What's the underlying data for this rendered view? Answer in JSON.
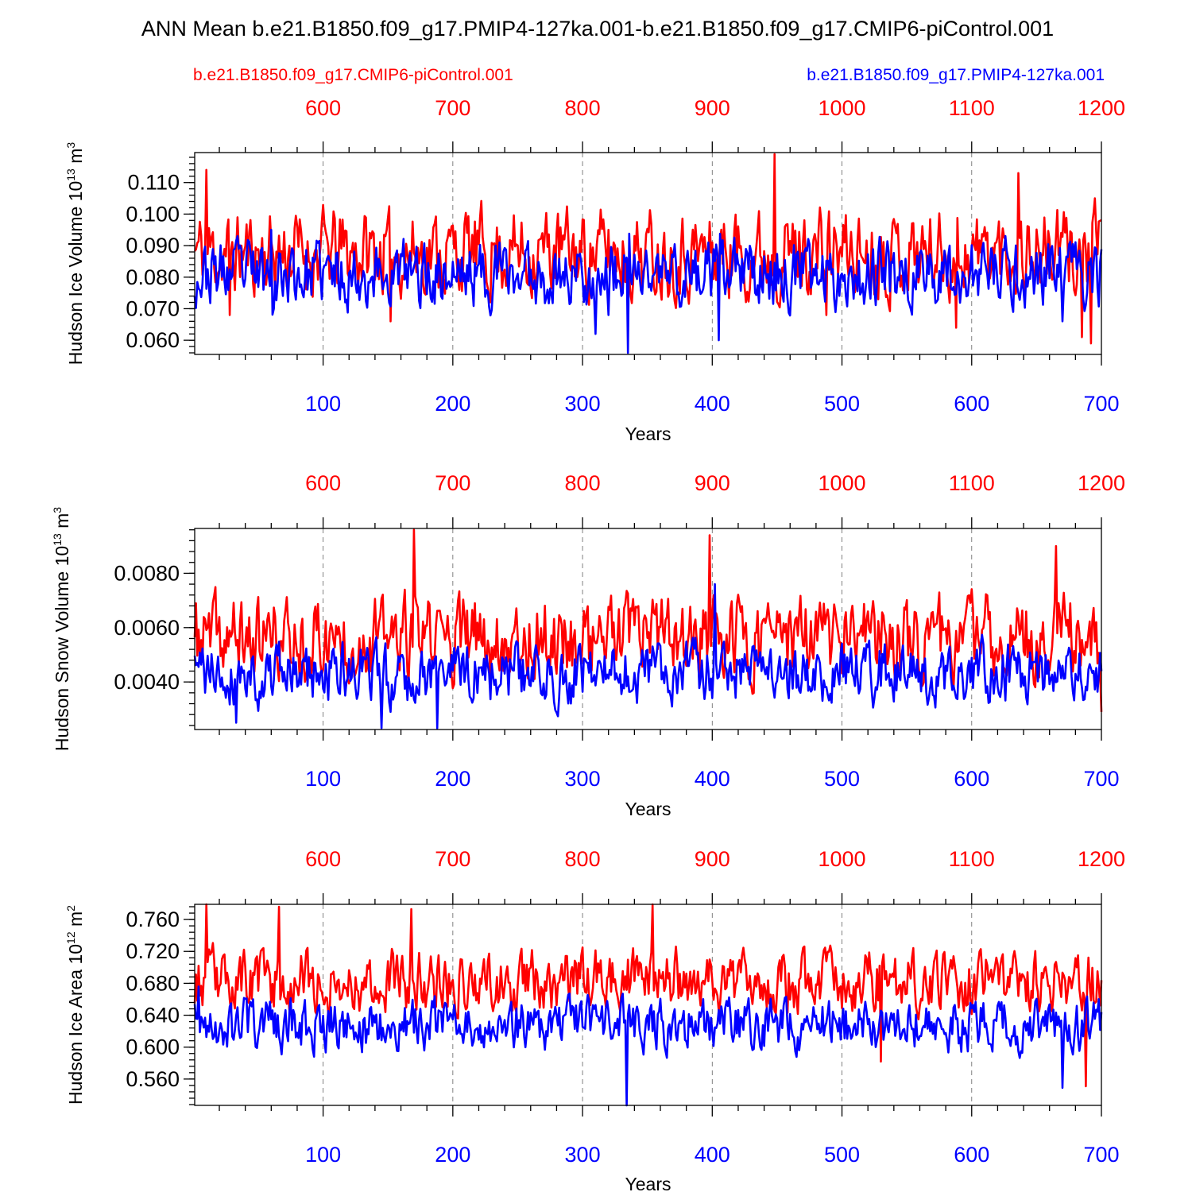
{
  "figure": {
    "title": "ANN Mean b.e21.B1850.f09_g17.PMIP4-127ka.001-b.e21.B1850.f09_g17.CMIP6-piControl.001",
    "legend": {
      "left": "b.e21.B1850.f09_g17.CMIP6-piControl.001",
      "right": "b.e21.B1850.f09_g17.PMIP4-127ka.001"
    },
    "colors": {
      "control": "#ff0000",
      "pmip": "#0000ff",
      "axis": "#000000"
    }
  },
  "chart_data": [
    {
      "type": "line",
      "id": "ice-volume",
      "ylabel": "Hudson Ice Volume 10",
      "ylabel_sup1": "13",
      "ylabel_unit": " m",
      "ylabel_sup2": "3",
      "xlabel": "Years",
      "ylim": [
        0.0555,
        0.1195
      ],
      "yticks": [
        "0.060",
        "0.070",
        "0.080",
        "0.090",
        "0.100",
        "0.110"
      ],
      "xlim_bottom": [
        1,
        700
      ],
      "xticks_bottom": [
        "100",
        "200",
        "300",
        "400",
        "500",
        "600",
        "700"
      ],
      "xlim_top": [
        501,
        1200
      ],
      "xticks_top": [
        "600",
        "700",
        "800",
        "900",
        "1000",
        "1100",
        "1200"
      ],
      "series": [
        {
          "name": "b.e21.B1850.f09_g17.CMIP6-piControl.001",
          "color": "#ff0000",
          "mean": 0.088,
          "amp": 0.0085,
          "peaks": [
            [
              10,
              0.114
            ],
            [
              28,
              0.068
            ],
            [
              152,
              0.066
            ],
            [
              448,
              0.119
            ],
            [
              488,
              0.068
            ],
            [
              588,
              0.064
            ],
            [
              636,
              0.113
            ],
            [
              685,
              0.061
            ],
            [
              692,
              0.059
            ]
          ],
          "seed": 11
        },
        {
          "name": "b.e21.B1850.f09_g17.PMIP4-127ka.001",
          "color": "#0000ff",
          "mean": 0.081,
          "amp": 0.0065,
          "peaks": [
            [
              60,
              0.095
            ],
            [
              320,
              0.068
            ],
            [
              335,
              0.056
            ],
            [
              405,
              0.06
            ],
            [
              310,
              0.062
            ],
            [
              670,
              0.066
            ]
          ],
          "seed": 23
        }
      ]
    },
    {
      "type": "line",
      "id": "snow-volume",
      "ylabel": "Hudson Snow Volume 10",
      "ylabel_sup1": "13",
      "ylabel_unit": " m",
      "ylabel_sup2": "3",
      "xlabel": "Years",
      "ylim": [
        0.00225,
        0.00965
      ],
      "yticks": [
        "0.0040",
        "0.0060",
        "0.0080"
      ],
      "xlim_bottom": [
        1,
        700
      ],
      "xticks_bottom": [
        "100",
        "200",
        "300",
        "400",
        "500",
        "600",
        "700"
      ],
      "xlim_top": [
        501,
        1200
      ],
      "xticks_top": [
        "600",
        "700",
        "800",
        "900",
        "1000",
        "1100",
        "1200"
      ],
      "series": [
        {
          "name": "b.e21.B1850.f09_g17.CMIP6-piControl.001",
          "color": "#ff0000",
          "mean": 0.0056,
          "amp": 0.00095,
          "peaks": [
            [
              170,
              0.0096
            ],
            [
              398,
              0.0094
            ],
            [
              665,
              0.009
            ],
            [
              700,
              0.0029
            ]
          ],
          "seed": 37
        },
        {
          "name": "b.e21.B1850.f09_g17.PMIP4-127ka.001",
          "color": "#0000ff",
          "mean": 0.0043,
          "amp": 0.0007,
          "peaks": [
            [
              145,
              0.0023
            ],
            [
              188,
              0.0023
            ],
            [
              402,
              0.0076
            ],
            [
              33,
              0.0025
            ]
          ],
          "seed": 41
        }
      ]
    },
    {
      "type": "line",
      "id": "ice-area",
      "ylabel": "Hudson Ice Area 10",
      "ylabel_sup1": "12",
      "ylabel_unit": " m",
      "ylabel_sup2": "2",
      "xlabel": "Years",
      "ylim": [
        0.527,
        0.779
      ],
      "yticks": [
        "0.560",
        "0.600",
        "0.640",
        "0.680",
        "0.720",
        "0.760"
      ],
      "xlim_bottom": [
        1,
        700
      ],
      "xticks_bottom": [
        "100",
        "200",
        "300",
        "400",
        "500",
        "600",
        "700"
      ],
      "xlim_top": [
        501,
        1200
      ],
      "xticks_top": [
        "600",
        "700",
        "800",
        "900",
        "1000",
        "1100",
        "1200"
      ],
      "series": [
        {
          "name": "b.e21.B1850.f09_g17.CMIP6-piControl.001",
          "color": "#ff0000",
          "mean": 0.683,
          "amp": 0.024,
          "peaks": [
            [
              10,
              0.779
            ],
            [
              66,
              0.776
            ],
            [
              168,
              0.773
            ],
            [
              354,
              0.779
            ],
            [
              688,
              0.551
            ],
            [
              530,
              0.582
            ]
          ],
          "seed": 53
        },
        {
          "name": "b.e21.B1850.f09_g17.PMIP4-127ka.001",
          "color": "#0000ff",
          "mean": 0.628,
          "amp": 0.02,
          "peaks": [
            [
              334,
              0.527
            ],
            [
              670,
              0.549
            ],
            [
              4,
              0.676
            ]
          ],
          "seed": 67
        }
      ]
    }
  ]
}
